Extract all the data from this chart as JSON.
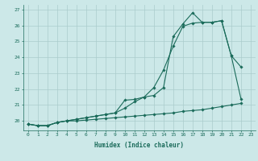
{
  "title": "",
  "xlabel": "Humidex (Indice chaleur)",
  "ylabel": "",
  "bg_color": "#cce8e8",
  "grid_color": "#aacccc",
  "line_color": "#1a6b5a",
  "xlim": [
    -0.5,
    23.5
  ],
  "ylim": [
    19.4,
    27.3
  ],
  "yticks": [
    20,
    21,
    22,
    23,
    24,
    25,
    26,
    27
  ],
  "xticks": [
    0,
    1,
    2,
    3,
    4,
    5,
    6,
    7,
    8,
    9,
    10,
    11,
    12,
    13,
    14,
    15,
    16,
    17,
    18,
    19,
    20,
    21,
    22,
    23
  ],
  "series1_x": [
    0,
    1,
    2,
    3,
    4,
    5,
    6,
    7,
    8,
    9,
    10,
    11,
    12,
    13,
    14,
    15,
    16,
    17,
    18,
    19,
    20,
    21,
    22
  ],
  "series1_y": [
    19.8,
    19.7,
    19.7,
    19.9,
    20.0,
    20.1,
    20.2,
    20.3,
    20.4,
    20.5,
    21.3,
    21.35,
    21.5,
    21.6,
    22.1,
    25.3,
    26.1,
    26.8,
    26.2,
    26.2,
    26.3,
    24.1,
    23.4
  ],
  "series2_x": [
    0,
    1,
    2,
    3,
    4,
    5,
    6,
    7,
    8,
    9,
    10,
    11,
    12,
    13,
    14,
    15,
    16,
    17,
    18,
    19,
    20,
    21,
    22,
    23
  ],
  "series2_y": [
    19.8,
    19.7,
    19.7,
    19.9,
    20.0,
    20.1,
    20.2,
    20.3,
    20.4,
    20.5,
    20.8,
    21.2,
    21.5,
    22.1,
    23.2,
    24.7,
    25.95,
    26.15,
    26.2,
    26.2,
    26.3,
    24.1,
    21.4,
    null
  ],
  "series3_x": [
    0,
    1,
    2,
    3,
    4,
    5,
    6,
    7,
    8,
    9,
    10,
    11,
    12,
    13,
    14,
    15,
    16,
    17,
    18,
    19,
    20,
    21,
    22,
    23
  ],
  "series3_y": [
    19.8,
    19.7,
    19.7,
    19.9,
    20.0,
    20.0,
    20.05,
    20.1,
    20.15,
    20.2,
    20.25,
    20.3,
    20.35,
    20.4,
    20.45,
    20.5,
    20.6,
    20.65,
    20.7,
    20.8,
    20.9,
    21.0,
    21.1,
    null
  ]
}
